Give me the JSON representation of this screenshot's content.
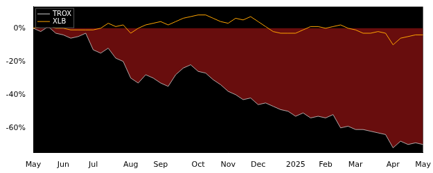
{
  "chart_data": {
    "type": "line",
    "categories": [
      "May",
      null,
      null,
      null,
      "Jun",
      null,
      null,
      null,
      "Jul",
      null,
      null,
      null,
      null,
      "Aug",
      null,
      null,
      null,
      "Sep",
      null,
      null,
      null,
      null,
      "Oct",
      null,
      null,
      null,
      "Nov",
      null,
      null,
      null,
      "Dec",
      null,
      null,
      null,
      null,
      "2025",
      null,
      null,
      null,
      "Feb",
      null,
      null,
      null,
      "Mar",
      null,
      null,
      null,
      null,
      "Apr",
      null,
      null,
      null,
      "May"
    ],
    "series": [
      {
        "name": "TROX",
        "color": "#d0d0d0",
        "values": [
          0,
          -2,
          1,
          -3,
          -4,
          -6,
          -5,
          -3,
          -13,
          -15,
          -12,
          -18,
          -20,
          -30,
          -33,
          -28,
          -30,
          -33,
          -35,
          -28,
          -24,
          -22,
          -26,
          -27,
          -31,
          -34,
          -38,
          -40,
          -43,
          -42,
          -46,
          -45,
          -47,
          -49,
          -50,
          -53,
          -51,
          -54,
          -53,
          -54,
          -52,
          -60,
          -59,
          -61,
          -61,
          -62,
          -63,
          -64,
          -72,
          -68,
          -70,
          -69,
          -70
        ]
      },
      {
        "name": "XLB",
        "color": "#ffa500",
        "values": [
          0,
          1,
          2,
          0,
          0,
          -1,
          -1,
          -1,
          -1,
          0,
          3,
          1,
          2,
          -3,
          0,
          2,
          3,
          4,
          2,
          4,
          6,
          7,
          8,
          8,
          6,
          4,
          3,
          6,
          5,
          7,
          4,
          1,
          -2,
          -3,
          -3,
          -3,
          -1,
          1,
          1,
          0,
          1,
          2,
          0,
          -1,
          -3,
          -3,
          -2,
          -3,
          -10,
          -6,
          -5,
          -4,
          -4
        ]
      }
    ],
    "ylim": [
      -75,
      13
    ],
    "yticks": [
      {
        "value": -60,
        "label": "-60%"
      },
      {
        "value": -40,
        "label": "-40%"
      },
      {
        "value": -20,
        "label": "-20%"
      },
      {
        "value": 0,
        "label": "0%"
      }
    ],
    "grid": false,
    "legend": "upper left"
  }
}
